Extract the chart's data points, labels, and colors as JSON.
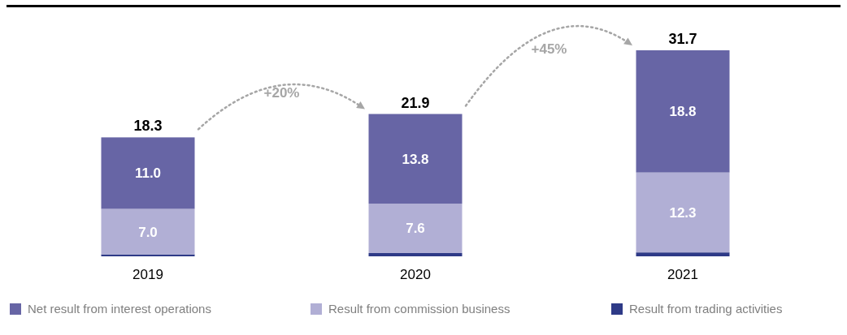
{
  "chart_data": {
    "type": "bar",
    "stacked": true,
    "categories": [
      "2019",
      "2020",
      "2021"
    ],
    "series": [
      {
        "name": "Result from trading activities",
        "color": "#2e3a87",
        "values": [
          0.3,
          0.5,
          0.6
        ],
        "value_labels": [
          null,
          null,
          null
        ]
      },
      {
        "name": "Result from commission business",
        "color": "#b1afd5",
        "values": [
          7.0,
          7.6,
          12.3
        ],
        "value_labels": [
          "7.0",
          "7.6",
          "12.3"
        ]
      },
      {
        "name": "Net result from interest operations",
        "color": "#6765a5",
        "values": [
          11.0,
          13.8,
          18.8
        ],
        "value_labels": [
          "11.0",
          "13.8",
          "18.8"
        ]
      }
    ],
    "totals": [
      "18.3",
      "21.9",
      "31.7"
    ],
    "annotations": [
      "+20%",
      "+45%"
    ],
    "legend": "bottom"
  }
}
